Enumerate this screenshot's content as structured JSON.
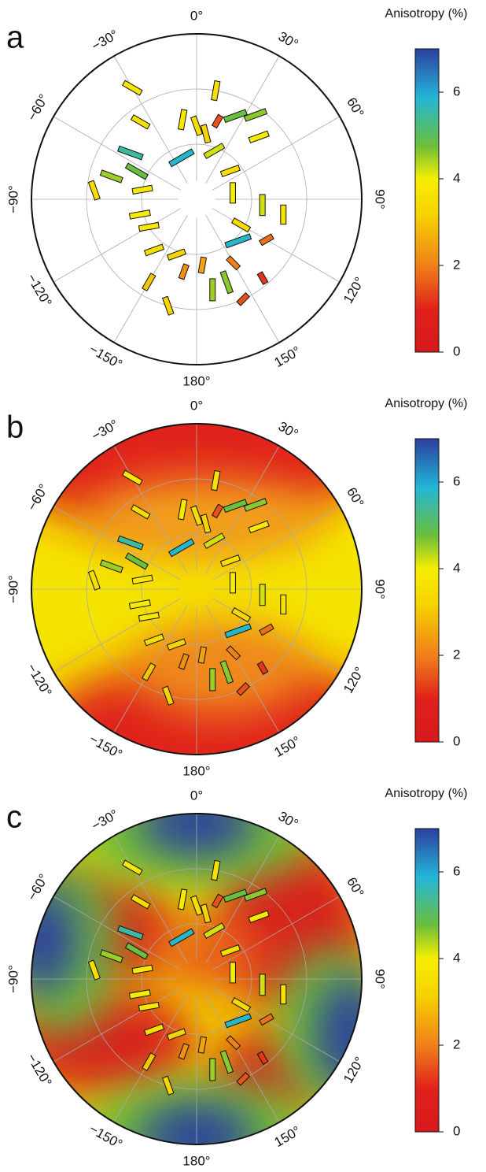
{
  "stations": [
    {
      "lon": -36,
      "colat": 26,
      "azimuth": -60,
      "value": 3.5
    },
    {
      "lon": -10,
      "colat": 22,
      "azimuth": 10,
      "value": 3.8
    },
    {
      "lon": 0,
      "colat": 20,
      "azimuth": -20,
      "value": 3.5
    },
    {
      "lon": 8,
      "colat": 18,
      "azimuth": -15,
      "value": 3.2
    },
    {
      "lon": 15,
      "colat": 22,
      "azimuth": 30,
      "value": 1.5
    },
    {
      "lon": 25,
      "colat": 25,
      "azimuth": 70,
      "value": 4.8
    },
    {
      "lon": 35,
      "colat": 28,
      "azimuth": 70,
      "value": 4.6
    },
    {
      "lon": 45,
      "colat": 24,
      "azimuth": 70,
      "value": 3.8
    },
    {
      "lon": -55,
      "colat": 22,
      "azimuth": -70,
      "value": 5.5
    },
    {
      "lon": -65,
      "colat": 18,
      "azimuth": -60,
      "value": 4.8
    },
    {
      "lon": -75,
      "colat": 24,
      "azimuth": -70,
      "value": 4.5
    },
    {
      "lon": -85,
      "colat": 28,
      "azimuth": -20,
      "value": 3.5
    },
    {
      "lon": -80,
      "colat": 15,
      "azimuth": 80,
      "value": 3.8
    },
    {
      "lon": -20,
      "colat": 12,
      "azimuth": 60,
      "value": 5.8
    },
    {
      "lon": 20,
      "colat": 14,
      "azimuth": 60,
      "value": 4.2
    },
    {
      "lon": 50,
      "colat": 12,
      "azimuth": 70,
      "value": 3.5
    },
    {
      "lon": 80,
      "colat": 10,
      "azimuth": 0,
      "value": 4.0
    },
    {
      "lon": 95,
      "colat": 18,
      "azimuth": 0,
      "value": 4.2
    },
    {
      "lon": 100,
      "colat": 24,
      "azimuth": 0,
      "value": 3.6
    },
    {
      "lon": 120,
      "colat": 14,
      "azimuth": -60,
      "value": 3.4
    },
    {
      "lon": 135,
      "colat": 16,
      "azimuth": 70,
      "value": 5.8
    },
    {
      "lon": 150,
      "colat": 20,
      "azimuth": -45,
      "value": 2.0
    },
    {
      "lon": 160,
      "colat": 24,
      "azimuth": -20,
      "value": 4.6
    },
    {
      "lon": 170,
      "colat": 25,
      "azimuth": 0,
      "value": 4.5
    },
    {
      "lon": 175,
      "colat": 18,
      "azimuth": 10,
      "value": 2.5
    },
    {
      "lon": -170,
      "colat": 20,
      "azimuth": 20,
      "value": 2.2
    },
    {
      "lon": -160,
      "colat": 16,
      "azimuth": 70,
      "value": 3.2
    },
    {
      "lon": -140,
      "colat": 18,
      "azimuth": 70,
      "value": 3.5
    },
    {
      "lon": -120,
      "colat": 15,
      "azimuth": 80,
      "value": 3.8
    },
    {
      "lon": -105,
      "colat": 16,
      "azimuth": 80,
      "value": 4.0
    },
    {
      "lon": -150,
      "colat": 26,
      "azimuth": 30,
      "value": 3.0
    },
    {
      "lon": -165,
      "colat": 30,
      "azimuth": -20,
      "value": 3.2
    },
    {
      "lon": 155,
      "colat": 30,
      "azimuth": 45,
      "value": 1.5
    },
    {
      "lon": 120,
      "colat": 22,
      "azimuth": 60,
      "value": 1.8
    },
    {
      "lon": 140,
      "colat": 28,
      "azimuth": -30,
      "value": 1.2
    },
    {
      "lon": -30,
      "colat": 35,
      "azimuth": -60,
      "value": 3.8
    },
    {
      "lon": 10,
      "colat": 30,
      "azimuth": 10,
      "value": 3.6
    }
  ],
  "chart_data": [
    {
      "type": "polar",
      "label": "a",
      "background": "none",
      "rlim": [
        0,
        45
      ],
      "angle_ticks": [
        {
          "value": 0,
          "label": "0°"
        },
        {
          "value": 30,
          "label": "30°"
        },
        {
          "value": 60,
          "label": "60°"
        },
        {
          "value": 90,
          "label": "90°"
        },
        {
          "value": 120,
          "label": "120°"
        },
        {
          "value": 150,
          "label": "150°"
        },
        {
          "value": 180,
          "label": "180°"
        },
        {
          "value": -150,
          "label": "−150°"
        },
        {
          "value": -120,
          "label": "−120°"
        },
        {
          "value": -90,
          "label": "−90°"
        },
        {
          "value": -60,
          "label": "−60°"
        },
        {
          "value": -30,
          "label": "−30°"
        }
      ],
      "colorbar_title": "Anisotropy (%)",
      "clim": [
        0,
        7
      ],
      "cticks": [
        0,
        2,
        4,
        6
      ]
    },
    {
      "type": "polar",
      "label": "b",
      "background": "model-b",
      "rlim": [
        0,
        45
      ],
      "angle_ticks": [
        {
          "value": 0,
          "label": "0°"
        },
        {
          "value": 30,
          "label": "30°"
        },
        {
          "value": 60,
          "label": "60°"
        },
        {
          "value": 90,
          "label": "90°"
        },
        {
          "value": 120,
          "label": "120°"
        },
        {
          "value": 150,
          "label": "150°"
        },
        {
          "value": 180,
          "label": "180°"
        },
        {
          "value": -150,
          "label": "−150°"
        },
        {
          "value": -120,
          "label": "−120°"
        },
        {
          "value": -90,
          "label": "−90°"
        },
        {
          "value": -60,
          "label": "−60°"
        },
        {
          "value": -30,
          "label": "−30°"
        }
      ],
      "colorbar_title": "Anisotropy (%)",
      "clim": [
        0,
        7
      ],
      "cticks": [
        0,
        2,
        4,
        6
      ]
    },
    {
      "type": "polar",
      "label": "c",
      "background": "model-c",
      "rlim": [
        0,
        45
      ],
      "angle_ticks": [
        {
          "value": 0,
          "label": "0°"
        },
        {
          "value": 30,
          "label": "30°"
        },
        {
          "value": 60,
          "label": "60°"
        },
        {
          "value": 90,
          "label": "90°"
        },
        {
          "value": 120,
          "label": "120°"
        },
        {
          "value": 150,
          "label": "150°"
        },
        {
          "value": 180,
          "label": "180°"
        },
        {
          "value": -150,
          "label": "−150°"
        },
        {
          "value": -120,
          "label": "−120°"
        },
        {
          "value": -90,
          "label": "−90°"
        },
        {
          "value": -60,
          "label": "−60°"
        },
        {
          "value": -30,
          "label": "−30°"
        }
      ],
      "colorbar_title": "Anisotropy (%)",
      "clim": [
        0,
        7
      ],
      "cticks": [
        0,
        2,
        4,
        6
      ]
    }
  ]
}
